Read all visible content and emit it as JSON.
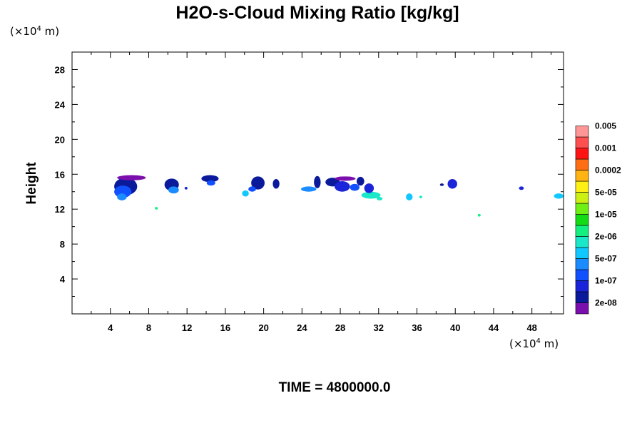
{
  "chart_data": {
    "type": "heatmap",
    "title": "H2O-s-Cloud Mixing Ratio [kg/kg]",
    "y_unit": {
      "prefix": "(×10",
      "exp": "4",
      "suffix": " m)"
    },
    "x_unit": {
      "prefix": "(×10",
      "exp": "4",
      "suffix": " m)"
    },
    "ylabel": "Height",
    "footer": "TIME = 4800000.0",
    "xlim": [
      0,
      51.3
    ],
    "ylim": [
      0,
      30
    ],
    "x_ticks": [
      4,
      8,
      12,
      16,
      20,
      24,
      28,
      32,
      36,
      40,
      44,
      48
    ],
    "y_ticks": [
      4,
      8,
      12,
      16,
      20,
      24,
      28
    ],
    "x_minor_step": 2,
    "y_minor_step": 2,
    "colorbar": {
      "colors": [
        "#7b0fad",
        "#0a1a9a",
        "#1a24d8",
        "#1050ff",
        "#1a8cff",
        "#10c8ff",
        "#1ae8c8",
        "#14f080",
        "#14dc14",
        "#6ef014",
        "#cdf014",
        "#fff014",
        "#ffb414",
        "#ff6e14",
        "#ff1414",
        "#ff5050",
        "#ff9696"
      ],
      "labels": [
        "2e-08",
        "1e-07",
        "5e-07",
        "2e-06",
        "1e-05",
        "5e-05",
        "0.0002",
        "0.001",
        "0.005"
      ]
    },
    "cloud_blobs": [
      {
        "x": 5.6,
        "y": 14.6,
        "w": 2.4,
        "h": 2.0,
        "level": 1
      },
      {
        "x": 5.3,
        "y": 14.0,
        "w": 1.8,
        "h": 1.4,
        "level": 3
      },
      {
        "x": 5.2,
        "y": 13.4,
        "w": 1.0,
        "h": 0.8,
        "level": 4
      },
      {
        "x": 6.2,
        "y": 15.6,
        "w": 3.0,
        "h": 0.6,
        "level": 0
      },
      {
        "x": 10.4,
        "y": 14.8,
        "w": 1.5,
        "h": 1.4,
        "level": 1
      },
      {
        "x": 10.6,
        "y": 14.2,
        "w": 1.1,
        "h": 0.8,
        "level": 4
      },
      {
        "x": 11.9,
        "y": 14.4,
        "w": 0.3,
        "h": 0.3,
        "level": 2
      },
      {
        "x": 8.8,
        "y": 12.1,
        "w": 0.3,
        "h": 0.3,
        "level": 7
      },
      {
        "x": 14.4,
        "y": 15.5,
        "w": 1.8,
        "h": 0.8,
        "level": 1
      },
      {
        "x": 14.5,
        "y": 15.0,
        "w": 0.9,
        "h": 0.6,
        "level": 3
      },
      {
        "x": 18.1,
        "y": 13.8,
        "w": 0.7,
        "h": 0.7,
        "level": 5
      },
      {
        "x": 19.4,
        "y": 15.0,
        "w": 1.4,
        "h": 1.5,
        "level": 1
      },
      {
        "x": 18.8,
        "y": 14.3,
        "w": 0.8,
        "h": 0.6,
        "level": 3
      },
      {
        "x": 21.3,
        "y": 14.9,
        "w": 0.7,
        "h": 1.1,
        "level": 1
      },
      {
        "x": 24.7,
        "y": 14.3,
        "w": 1.6,
        "h": 0.6,
        "level": 4
      },
      {
        "x": 25.6,
        "y": 15.1,
        "w": 0.7,
        "h": 1.4,
        "level": 1
      },
      {
        "x": 27.2,
        "y": 15.1,
        "w": 1.5,
        "h": 1.0,
        "level": 1
      },
      {
        "x": 28.2,
        "y": 14.6,
        "w": 1.6,
        "h": 1.2,
        "level": 2
      },
      {
        "x": 28.5,
        "y": 15.5,
        "w": 2.2,
        "h": 0.5,
        "level": 0
      },
      {
        "x": 29.5,
        "y": 14.5,
        "w": 1.0,
        "h": 0.8,
        "level": 3
      },
      {
        "x": 30.1,
        "y": 15.2,
        "w": 0.8,
        "h": 1.0,
        "level": 1
      },
      {
        "x": 31.2,
        "y": 13.6,
        "w": 2.0,
        "h": 0.8,
        "level": 6
      },
      {
        "x": 31.0,
        "y": 14.4,
        "w": 1.0,
        "h": 1.1,
        "level": 2
      },
      {
        "x": 32.1,
        "y": 13.2,
        "w": 0.6,
        "h": 0.4,
        "level": 6
      },
      {
        "x": 35.2,
        "y": 13.4,
        "w": 0.7,
        "h": 0.8,
        "level": 5
      },
      {
        "x": 36.4,
        "y": 13.4,
        "w": 0.3,
        "h": 0.3,
        "level": 6
      },
      {
        "x": 38.6,
        "y": 14.8,
        "w": 0.4,
        "h": 0.3,
        "level": 1
      },
      {
        "x": 39.7,
        "y": 14.9,
        "w": 1.0,
        "h": 1.1,
        "level": 2
      },
      {
        "x": 42.5,
        "y": 11.3,
        "w": 0.3,
        "h": 0.3,
        "level": 7
      },
      {
        "x": 46.9,
        "y": 14.4,
        "w": 0.5,
        "h": 0.4,
        "level": 2
      },
      {
        "x": 50.8,
        "y": 13.5,
        "w": 1.0,
        "h": 0.6,
        "level": 5
      }
    ]
  }
}
